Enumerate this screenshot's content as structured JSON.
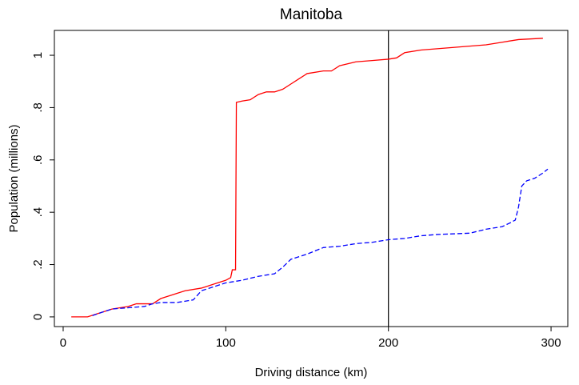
{
  "chart_data": {
    "type": "line",
    "title": "Manitoba",
    "x_label": "Driving distance (km)",
    "y_label": "Population (millions)",
    "xlim": [
      -5.4,
      310.3
    ],
    "xticks": [
      0,
      100,
      200,
      300
    ],
    "ylim": [
      -0.037,
      1.095
    ],
    "yticks": [
      {
        "value": 0,
        "label": "0"
      },
      {
        "value": 0.2,
        "label": ".2"
      },
      {
        "value": 0.4,
        "label": ".4"
      },
      {
        "value": 0.6,
        "label": ".6"
      },
      {
        "value": 0.8,
        "label": ".8"
      },
      {
        "value": 1,
        "label": "1"
      }
    ],
    "xline": 200,
    "series": [
      {
        "color": "#ff0000",
        "dashed": false,
        "x": [
          5,
          15,
          20,
          30,
          40,
          45,
          55,
          60,
          65,
          70,
          75,
          85,
          95,
          100,
          103,
          104,
          106,
          106.5,
          110,
          115,
          120,
          125,
          130,
          135,
          140,
          145,
          150,
          160,
          165,
          170,
          180,
          190,
          200,
          205,
          210,
          220,
          240,
          260,
          270,
          280,
          295
        ],
        "values": [
          0,
          0,
          0.01,
          0.03,
          0.04,
          0.05,
          0.05,
          0.07,
          0.08,
          0.09,
          0.1,
          0.11,
          0.13,
          0.14,
          0.15,
          0.18,
          0.18,
          0.82,
          0.825,
          0.83,
          0.85,
          0.86,
          0.86,
          0.87,
          0.89,
          0.91,
          0.93,
          0.94,
          0.94,
          0.96,
          0.975,
          0.98,
          0.985,
          0.99,
          1.01,
          1.02,
          1.03,
          1.04,
          1.05,
          1.06,
          1.065
        ]
      },
      {
        "color": "#0000ff",
        "dashed": true,
        "x": [
          18,
          25,
          30,
          40,
          50,
          55,
          60,
          70,
          80,
          85,
          90,
          100,
          110,
          120,
          130,
          135,
          140,
          150,
          160,
          170,
          180,
          190,
          200,
          210,
          220,
          230,
          250,
          260,
          270,
          275,
          278,
          280,
          282,
          285,
          290,
          295,
          298
        ],
        "values": [
          0.005,
          0.02,
          0.03,
          0.035,
          0.04,
          0.05,
          0.055,
          0.055,
          0.065,
          0.1,
          0.11,
          0.13,
          0.14,
          0.155,
          0.165,
          0.19,
          0.22,
          0.24,
          0.265,
          0.27,
          0.28,
          0.285,
          0.295,
          0.3,
          0.31,
          0.315,
          0.32,
          0.335,
          0.345,
          0.36,
          0.37,
          0.42,
          0.5,
          0.52,
          0.53,
          0.55,
          0.565
        ]
      }
    ]
  }
}
